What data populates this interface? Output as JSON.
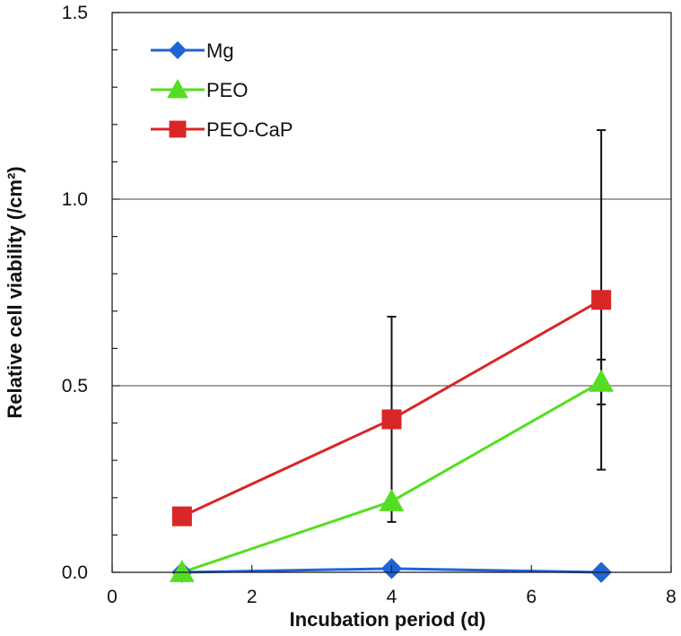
{
  "chart_data": {
    "type": "line",
    "title": "",
    "xlabel": "Incubation period (d)",
    "ylabel": "Relative cell viability (/cm²)",
    "xlim": [
      0,
      8
    ],
    "ylim": [
      0,
      1.5
    ],
    "x_ticks": [
      0,
      2,
      4,
      6,
      8
    ],
    "x_tick_labels": [
      "0",
      "2",
      "4",
      "6",
      "8"
    ],
    "y_ticks": [
      0,
      0.5,
      1.0,
      1.5
    ],
    "y_tick_labels": [
      "0.0",
      "0.5",
      "1.0",
      "1.5"
    ],
    "y_minor_step": 0.1,
    "horizontal_gridlines": [
      0.5,
      1.0
    ],
    "legend_position": "top-left",
    "series": [
      {
        "name": "Mg",
        "color": "#1f64d6",
        "marker": "diamond",
        "x": [
          1,
          4,
          7
        ],
        "y": [
          0.0,
          0.01,
          0.0
        ],
        "err": [
          0,
          0,
          0
        ]
      },
      {
        "name": "PEO",
        "color": "#55dd22",
        "marker": "triangle",
        "x": [
          1,
          4,
          7
        ],
        "y": [
          0.0,
          0.19,
          0.51
        ],
        "err": [
          0,
          0,
          0.06
        ]
      },
      {
        "name": "PEO-CaP",
        "color": "#d92626",
        "marker": "square",
        "x": [
          1,
          4,
          7
        ],
        "y": [
          0.15,
          0.41,
          0.73
        ],
        "err": [
          0,
          0.275,
          0.455
        ]
      }
    ]
  }
}
